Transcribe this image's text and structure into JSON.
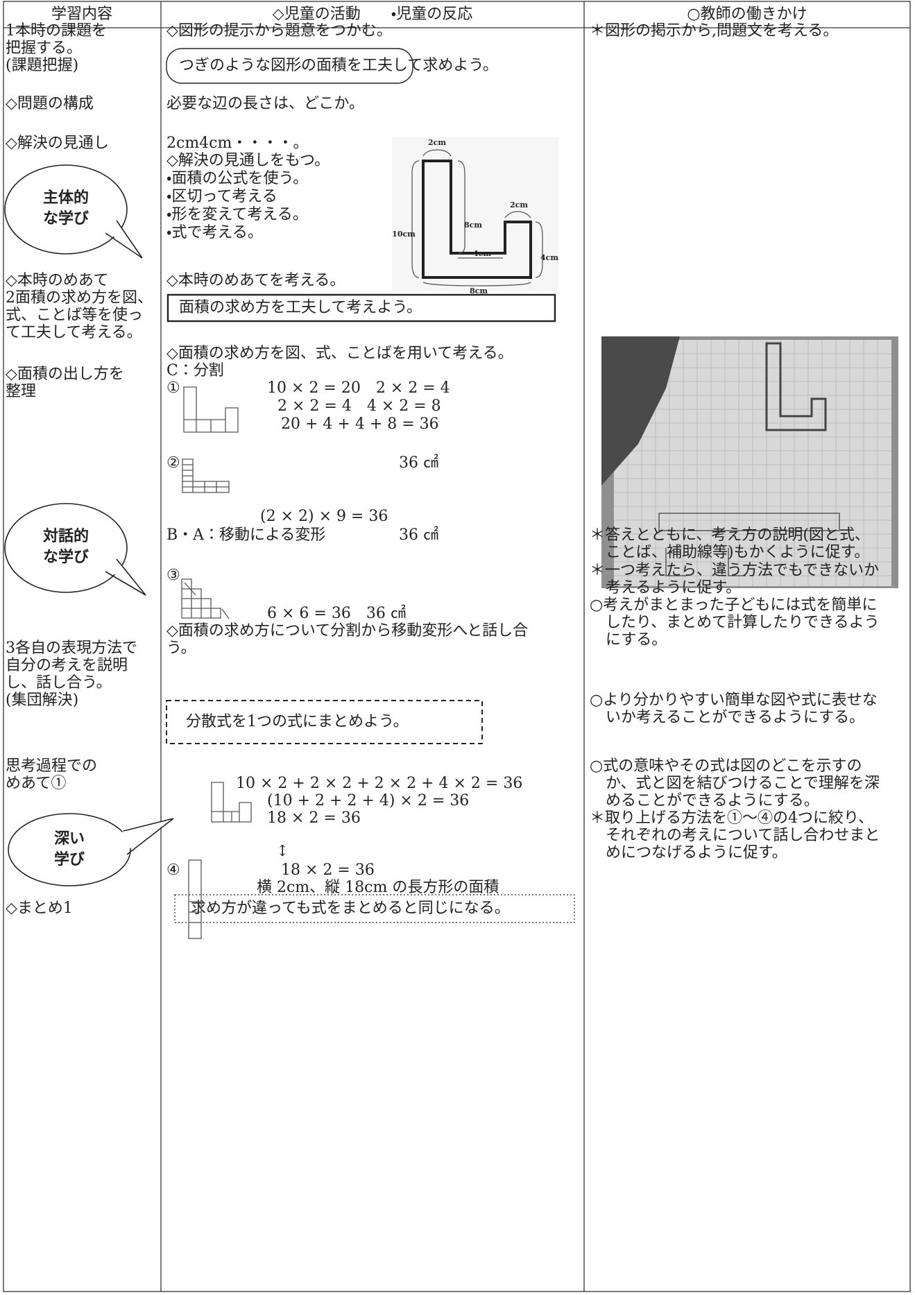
{
  "header": {
    "col1": "学習内容",
    "col2": "◇児童の活動　　・児童の反応",
    "col3": "○教師の働きかけ"
  },
  "left": [
    "1本時の課題を",
    "把握する。",
    "(課題把握)",
    "◇問題の構成",
    "◇解決の見通し",
    "◇本時のめあて",
    "2面積の求め方を図、",
    "式、ことば等を使っ",
    "て工夫して考える。",
    "◇面積の出し方を",
    "整理",
    "3各自の表現方法で",
    "自分の考えを説明",
    "し、話し合う。",
    "(集団解決)",
    "思考過程での",
    "めあて①",
    "◇まとめ1"
  ],
  "bubbles": [
    [
      "主体的",
      "な学び"
    ],
    [
      "対話的",
      "な学び"
    ],
    [
      "深い",
      "学び"
    ]
  ],
  "middle": [
    "◇図形の提示から題意をつかむ。",
    "必要な辺の長さは、どこか。",
    "2cm4cm・・・・。",
    "◇解決の見通しをもつ。",
    "・面積の公式を使う。",
    "・区切って考える",
    "・形を変えて考える。",
    "・式で考える。",
    "◇本時のめあてを考える。",
    "◇面積の求め方を図、式、ことばを用いて考える。",
    "C：分割",
    "①",
    "10 × 2 = 20　2 × 2 = 4",
    "2 × 2 = 4　4 × 2 = 8",
    "20 + 4 + 4 + 8 = 36",
    "②",
    "36 ㎠",
    "(2 × 2) × 9 = 36",
    "B・A：移動による変形",
    "36 ㎠",
    "③",
    "6 × 6 = 36　36 ㎠",
    "◇面積の求め方について分割から移動変形へと話し合",
    "う。",
    "10 × 2 + 2 × 2 + 2 × 2 + 4 × 2 = 36",
    "(10 + 2 + 2 + 4) × 2 = 36",
    "18 × 2 = 36",
    "↕",
    "④",
    "18 × 2 = 36",
    "横 2cm、縦 18cm の長方形の面積"
  ],
  "boxes": [
    "つぎのような図形の面積を工夫して求めよう。",
    "面積の求め方を工夫して考えよう。",
    "分散式を1つの式にまとめよう。",
    "求め方が違っても式をまとめると同じになる。"
  ],
  "figure_labels": [
    "2cm",
    "8cm",
    "10cm",
    "2cm",
    "4cm",
    "4cm",
    "8cm"
  ],
  "right": [
    "＊図形の掲示から,問題文を考える。",
    "＊答えとともに、考え方の説明(図と式、",
    "ことば、補助線等)もかくように促す。",
    "＊一つ考えたら、違う方法でもできないか",
    "考えるように促す。",
    "○考えがまとまった子どもには式を簡単に",
    "したり、まとめて計算したりできるよう",
    "にする。",
    "○より分かりやすい簡単な図や式に表せな",
    "いか考えることができるようにする。",
    "○式の意味やその式は図のどこを示すの",
    "か、式と図を結びつけることで理解を深",
    "めることができるようにする。",
    "＊取り上げる方法を①〜④の4つに絞り、",
    "それぞれの考えについて話し合わせまと",
    "めにつなげるように促す。"
  ]
}
